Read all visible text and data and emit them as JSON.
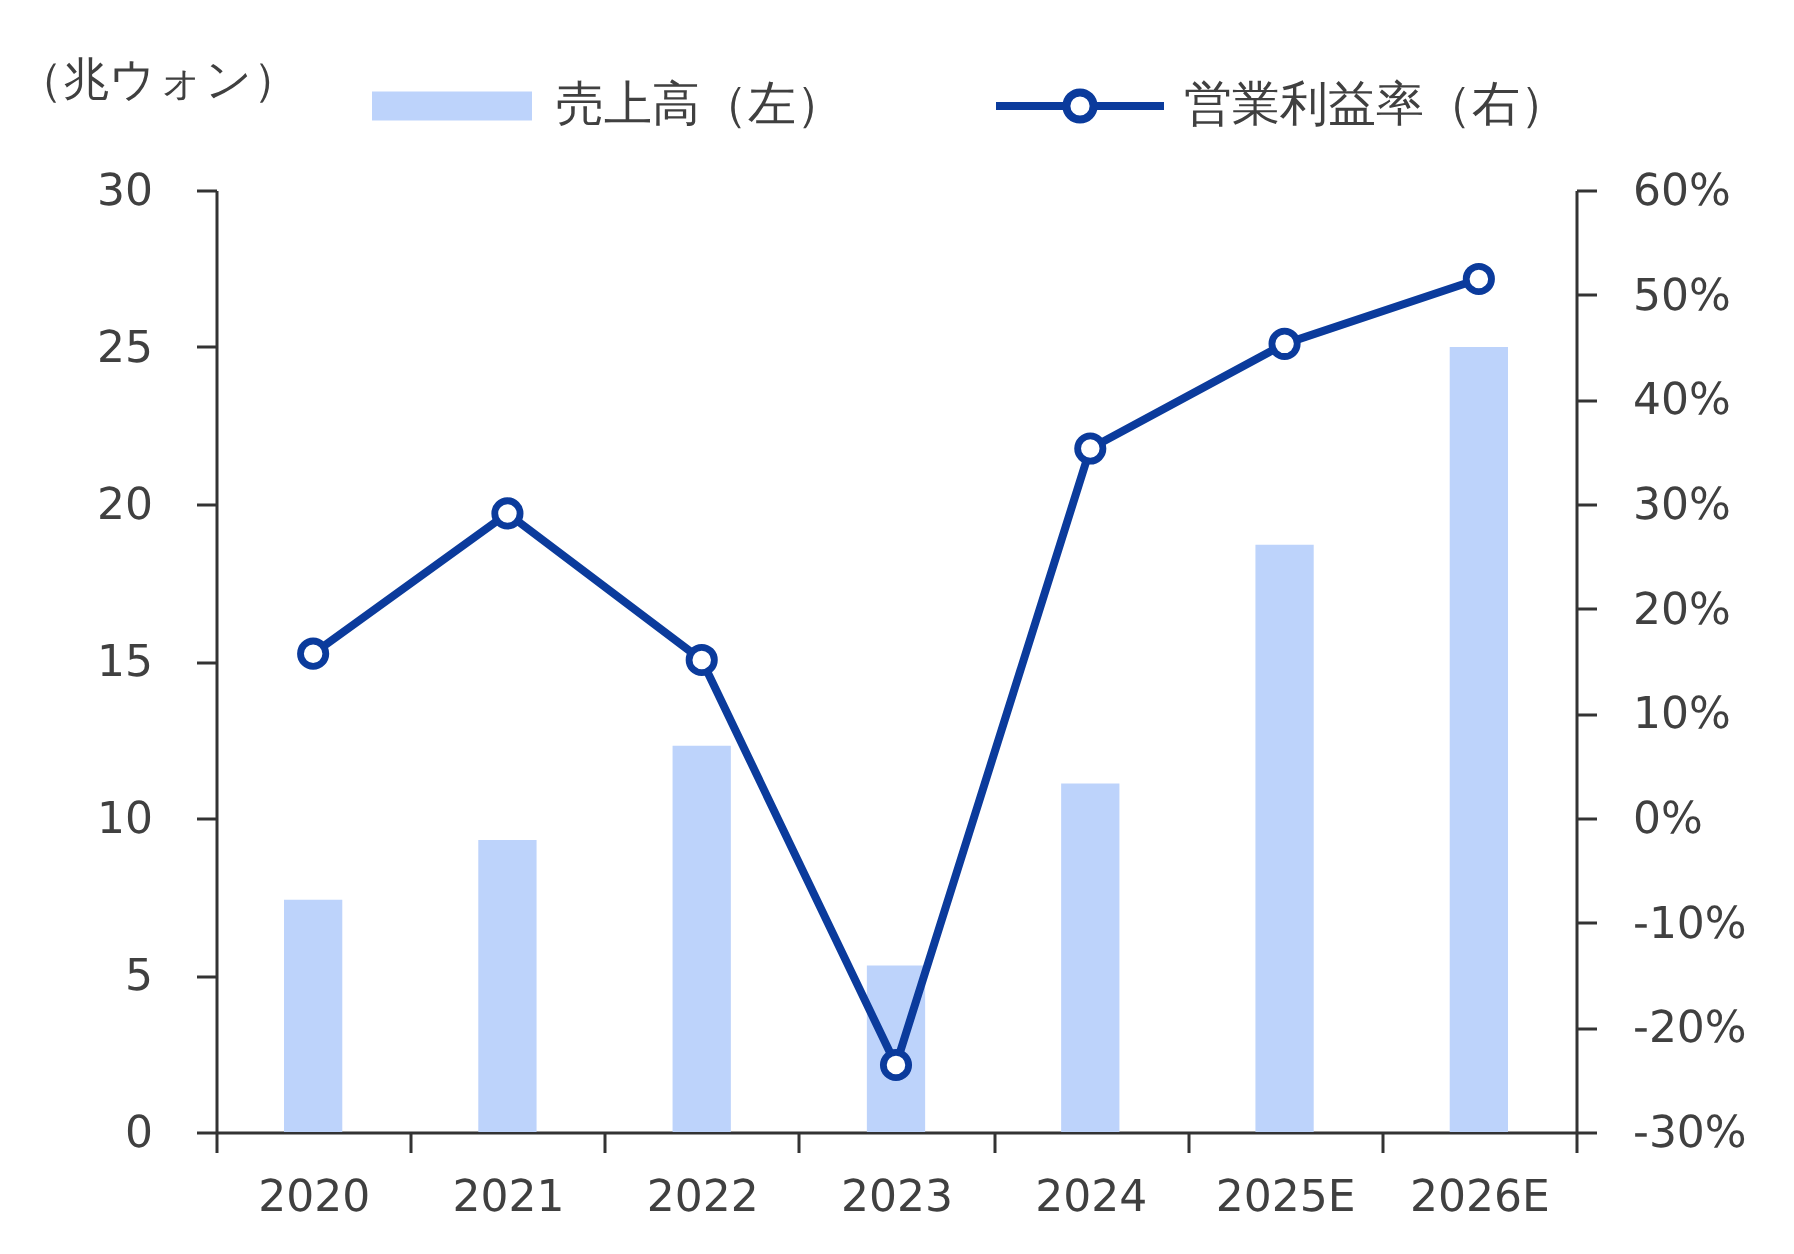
{
  "chart_data": {
    "type": "bar",
    "ylabel": "（兆ウォン）",
    "categories": [
      "2020",
      "2021",
      "2022",
      "2023",
      "2024",
      "2025E",
      "2026E"
    ],
    "series": [
      {
        "name": "売上高（左）",
        "type": "bar",
        "color": "#bdd3fb",
        "values": [
          7.4,
          9.3,
          12.3,
          5.3,
          11.1,
          18.7,
          25.0
        ]
      },
      {
        "name": "営業利益率（右）",
        "type": "line",
        "axis": "y2",
        "color": "#0b3b9c",
        "values": [
          15.7,
          29.1,
          15.1,
          -23.6,
          35.3,
          45.3,
          51.5
        ]
      }
    ],
    "ylim": [
      0,
      30
    ],
    "yticks": [
      0,
      5,
      10,
      15,
      20,
      25,
      30
    ],
    "y2lim": [
      -30,
      60
    ],
    "y2ticks": [
      {
        "value": -30,
        "label": "-30%"
      },
      {
        "value": -20,
        "label": "-20%"
      },
      {
        "value": -10,
        "label": "-10%"
      },
      {
        "value": 0,
        "label": "0%"
      },
      {
        "value": 10,
        "label": "10%"
      },
      {
        "value": 20,
        "label": "20%"
      },
      {
        "value": 30,
        "label": "30%"
      },
      {
        "value": 40,
        "label": "40%"
      },
      {
        "value": 50,
        "label": "50%"
      },
      {
        "value": 60,
        "label": "60%"
      }
    ],
    "legend": "top",
    "marker": "circle"
  }
}
